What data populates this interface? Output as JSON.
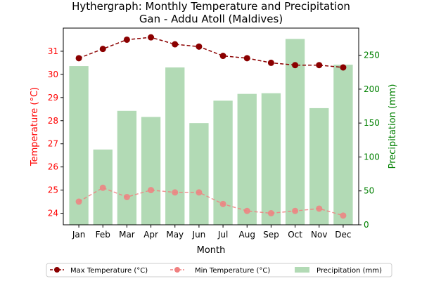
{
  "chart_data": {
    "type": "bar",
    "title_line1": "Hythergraph: Monthly Temperature and Precipitation",
    "title_line2": "Gan - Addu Atoll (Maldives)",
    "xlabel": "Month",
    "ylabel_left": "Temperature (°C)",
    "ylabel_right": "Precipitation (mm)",
    "categories": [
      "Jan",
      "Feb",
      "Mar",
      "Apr",
      "May",
      "Jun",
      "Jul",
      "Aug",
      "Sep",
      "Oct",
      "Nov",
      "Dec"
    ],
    "y_left_lim": [
      23.5,
      32.0
    ],
    "y_left_ticks": [
      24,
      25,
      26,
      27,
      28,
      29,
      30,
      31
    ],
    "y_right_lim": [
      0,
      290
    ],
    "y_right_ticks": [
      0,
      50,
      100,
      150,
      200,
      250
    ],
    "series": [
      {
        "name": "Max Temperature (°C)",
        "axis": "left",
        "kind": "line",
        "values": [
          30.7,
          31.1,
          31.5,
          31.6,
          31.3,
          31.2,
          30.8,
          30.7,
          30.5,
          30.4,
          30.4,
          30.3
        ]
      },
      {
        "name": "Min Temperature (°C)",
        "axis": "left",
        "kind": "line",
        "values": [
          24.5,
          25.1,
          24.7,
          25.0,
          24.9,
          24.9,
          24.4,
          24.1,
          24.0,
          24.1,
          24.2,
          23.9
        ]
      },
      {
        "name": "Precipitation (mm)",
        "axis": "right",
        "kind": "bar",
        "values": [
          234,
          111,
          168,
          159,
          232,
          150,
          183,
          193,
          194,
          274,
          172,
          236
        ]
      }
    ],
    "colors": {
      "max": "#8b0000",
      "min": "#f08080",
      "bar": "#b2dab5",
      "left_axis": "#ff0000",
      "right_axis": "#008000"
    },
    "legend_position": "bottom-center",
    "grid": false
  }
}
